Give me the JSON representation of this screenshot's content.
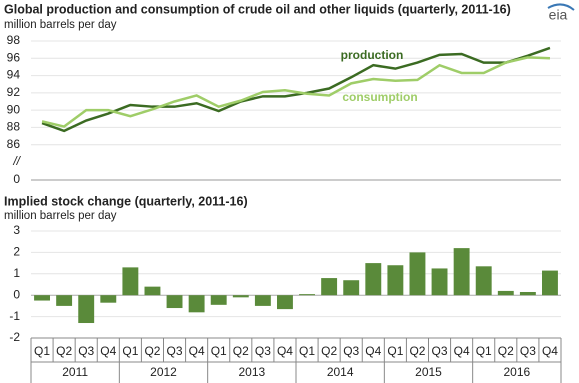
{
  "logo": "eia",
  "chart_data": [
    {
      "type": "line",
      "title": "Global production and consumption of crude oil and other liquids (quarterly, 2011-16)",
      "subtitle": "million barrels per day",
      "series": [
        {
          "name": "production",
          "color": "#3b6b22",
          "values": [
            88.5,
            87.6,
            88.8,
            89.6,
            90.6,
            90.4,
            90.4,
            90.8,
            89.9,
            91.0,
            91.6,
            91.6,
            92.0,
            92.5,
            93.8,
            95.2,
            94.8,
            95.5,
            96.4,
            96.5,
            95.5,
            95.5,
            96.3,
            97.2
          ]
        },
        {
          "name": "consumption",
          "color": "#9fcd68",
          "values": [
            88.7,
            88.1,
            90.0,
            90.0,
            89.3,
            90.1,
            91.0,
            91.7,
            90.4,
            91.1,
            92.1,
            92.3,
            91.9,
            91.7,
            93.1,
            93.6,
            93.4,
            93.5,
            95.2,
            94.3,
            94.3,
            95.5,
            96.1,
            96.0
          ]
        }
      ],
      "ylim": [
        0,
        98
      ],
      "yticks": [
        0,
        {
          "value": 84,
          "label": "//"
        },
        86,
        88,
        90,
        92,
        94,
        96,
        98
      ],
      "axis_break": true,
      "grid": true
    },
    {
      "type": "bar",
      "title": "Implied stock change (quarterly, 2011-16)",
      "subtitle": "million barrels per day",
      "categories": [
        "Q1",
        "Q2",
        "Q3",
        "Q4",
        "Q1",
        "Q2",
        "Q3",
        "Q4",
        "Q1",
        "Q2",
        "Q3",
        "Q4",
        "Q1",
        "Q2",
        "Q3",
        "Q4",
        "Q1",
        "Q2",
        "Q3",
        "Q4",
        "Q1",
        "Q2",
        "Q3",
        "Q4"
      ],
      "groups": [
        "2011",
        "2012",
        "2013",
        "2014",
        "2015",
        "2016"
      ],
      "values": [
        -0.25,
        -0.5,
        -1.3,
        -0.35,
        1.3,
        0.4,
        -0.6,
        -0.8,
        -0.45,
        -0.1,
        -0.5,
        -0.65,
        0.05,
        0.8,
        0.7,
        1.5,
        1.4,
        2.0,
        1.25,
        2.2,
        1.35,
        0.2,
        0.15,
        1.15
      ],
      "color": "#5a8a3a",
      "ylim": [
        -2,
        3
      ],
      "yticks": [
        -2,
        -1,
        0,
        1,
        2,
        3
      ],
      "grid": true
    }
  ]
}
